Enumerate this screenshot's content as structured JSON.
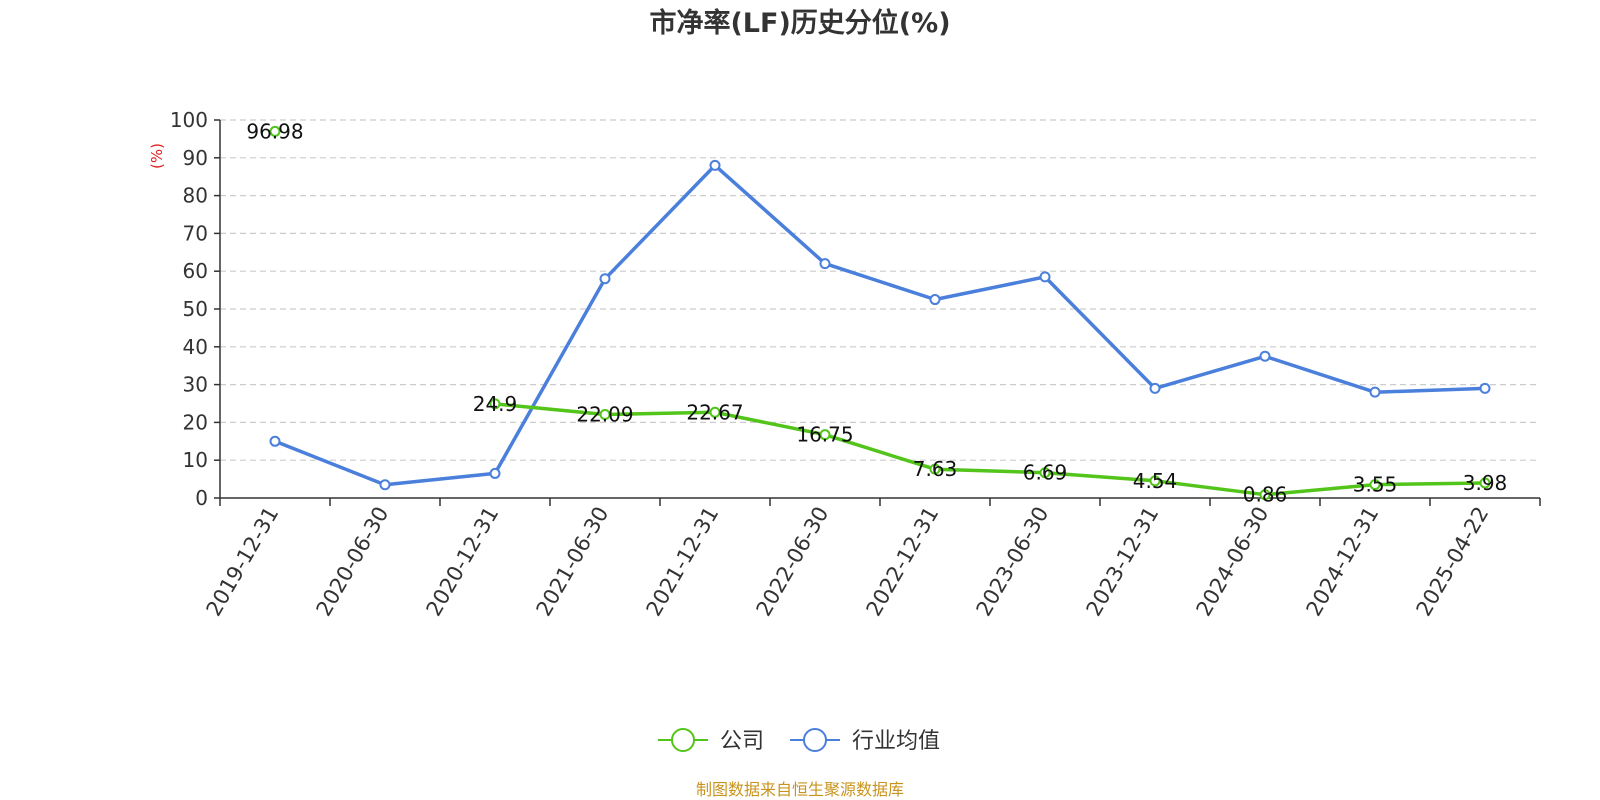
{
  "chart_data": {
    "type": "line",
    "title": "市净率(LF)历史分位(%)",
    "y_unit": "(%)",
    "categories": [
      "2019-12-31",
      "2020-06-30",
      "2020-12-31",
      "2021-06-30",
      "2021-12-31",
      "2022-06-30",
      "2022-12-31",
      "2023-06-30",
      "2023-12-31",
      "2024-06-30",
      "2024-12-31",
      "2025-04-22"
    ],
    "ylim": [
      0,
      100
    ],
    "yticks": [
      0,
      10,
      20,
      30,
      40,
      50,
      60,
      70,
      80,
      90,
      100
    ],
    "grid": true,
    "legend_position": "bottom-center",
    "series": [
      {
        "name": "公司",
        "color": "#52c41a",
        "values": [
          96.98,
          null,
          24.9,
          22.09,
          22.67,
          16.75,
          7.63,
          6.69,
          4.54,
          0.86,
          3.55,
          3.98
        ],
        "data_labels": [
          "96.98",
          "",
          "24.9",
          "22.09",
          "22.67",
          "16.75",
          "7.63",
          "6.69",
          "4.54",
          "0.86",
          "3.55",
          "3.98"
        ]
      },
      {
        "name": "行业均值",
        "color": "#4a7fdc",
        "values": [
          15,
          3.5,
          6.5,
          58,
          88,
          62,
          52.5,
          58.5,
          29,
          37.5,
          28,
          29
        ]
      }
    ]
  },
  "footer": {
    "source": "制图数据来自恒生聚源数据库",
    "color": "#c8941e"
  },
  "colors": {
    "axis": "#333333",
    "grid": "#cccccc",
    "unit": "#e02020"
  }
}
